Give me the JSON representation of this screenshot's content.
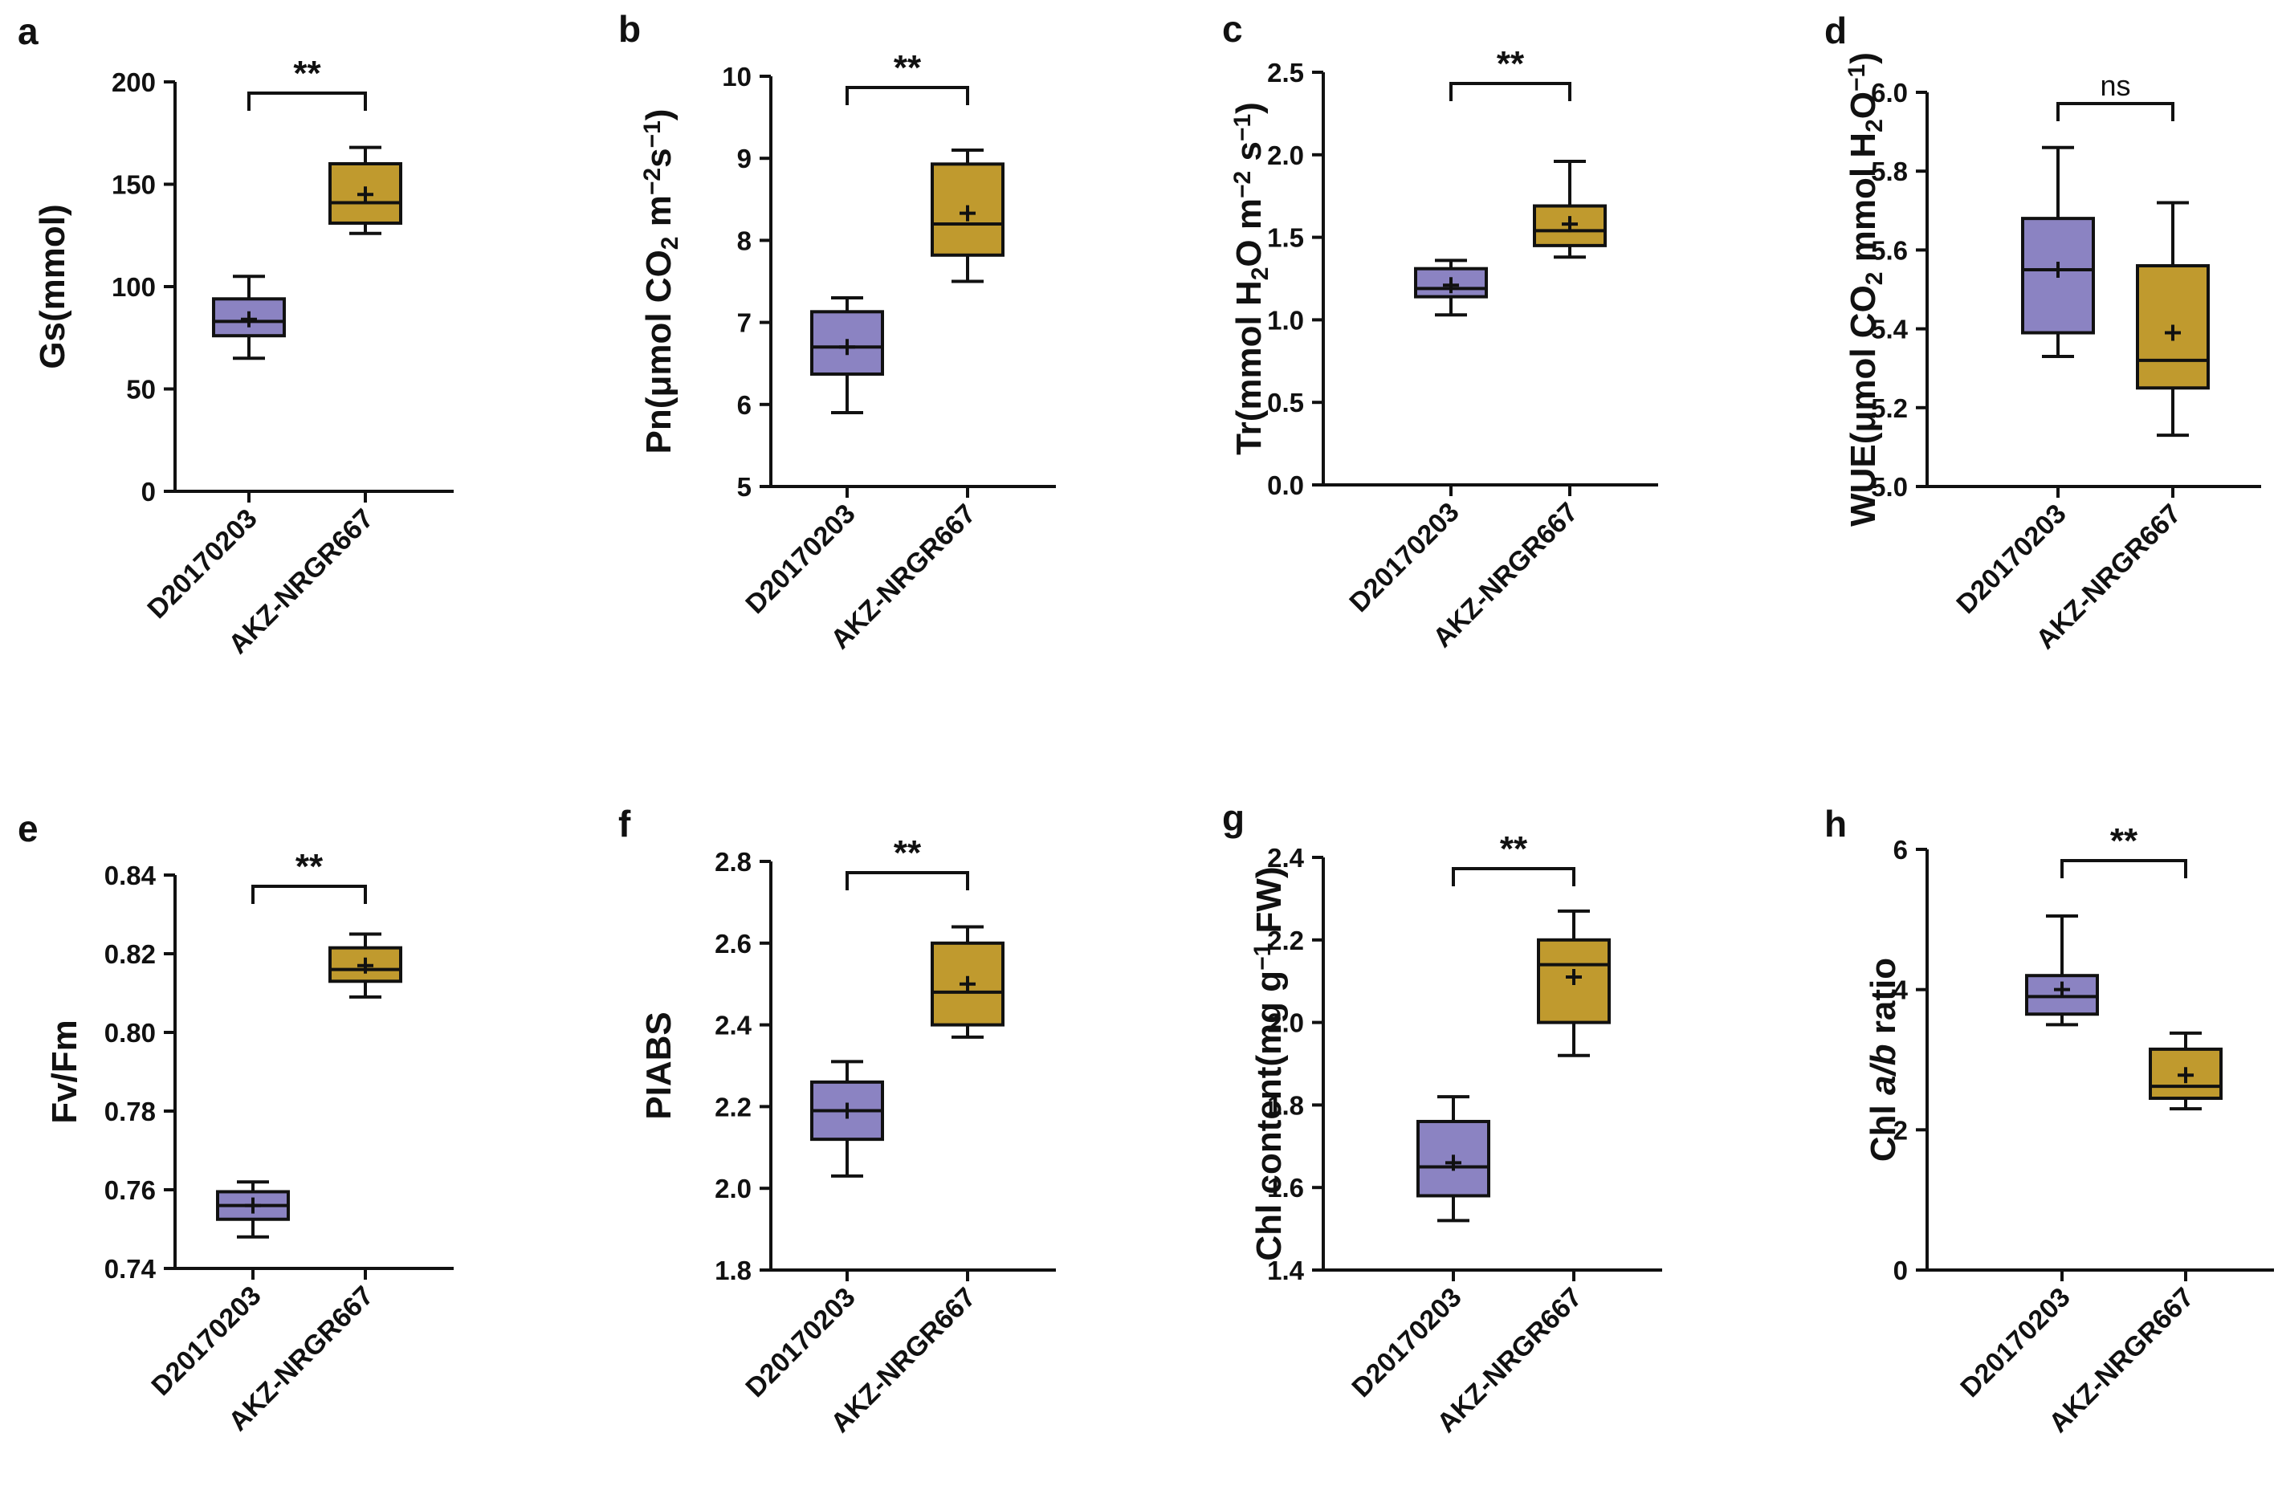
{
  "colors": {
    "group1": "#8b83c2",
    "group2": "#c09a2e",
    "line": "#111111"
  },
  "chart_data": [
    {
      "type": "box",
      "panel": "a",
      "ylabel": [
        {
          "t": "Gs(mmol)"
        }
      ],
      "categories": [
        "D20170203",
        "AKZ-NRGR667"
      ],
      "ylim": [
        0,
        200
      ],
      "ticks": [
        0,
        50,
        100,
        150,
        200
      ],
      "boxes": [
        {
          "min": 65,
          "q1": 76,
          "median": 83,
          "q3": 94,
          "max": 105,
          "mean": 84
        },
        {
          "min": 126,
          "q1": 131,
          "median": 141,
          "q3": 160,
          "max": 168,
          "mean": 145
        }
      ],
      "significance": "**"
    },
    {
      "type": "box",
      "panel": "b",
      "ylabel": [
        {
          "t": "Pn(μmol CO"
        },
        {
          "t": "2",
          "sub": true
        },
        {
          "t": " m"
        },
        {
          "t": "−2",
          "sup": true
        },
        {
          "t": "s"
        },
        {
          "t": "−1",
          "sup": true
        },
        {
          "t": ")"
        }
      ],
      "categories": [
        "D20170203",
        "AKZ-NRGR667"
      ],
      "ylim": [
        5,
        10
      ],
      "ticks": [
        5,
        6,
        7,
        8,
        9,
        10
      ],
      "boxes": [
        {
          "min": 5.9,
          "q1": 6.37,
          "median": 6.7,
          "q3": 7.13,
          "max": 7.3,
          "mean": 6.7
        },
        {
          "min": 7.5,
          "q1": 7.82,
          "median": 8.2,
          "q3": 8.93,
          "max": 9.1,
          "mean": 8.33
        }
      ],
      "significance": "**"
    },
    {
      "type": "box",
      "panel": "c",
      "ylabel": [
        {
          "t": "Tr(mmol H"
        },
        {
          "t": "2",
          "sub": true
        },
        {
          "t": "O m"
        },
        {
          "t": "−2",
          "sup": true
        },
        {
          "t": " s"
        },
        {
          "t": "−1",
          "sup": true
        },
        {
          "t": ")"
        }
      ],
      "categories": [
        "D20170203",
        "AKZ-NRGR667"
      ],
      "ylim": [
        0,
        2.5
      ],
      "ticks": [
        0.0,
        0.5,
        1.0,
        1.5,
        2.0,
        2.5
      ],
      "tick_decimals": 1,
      "boxes": [
        {
          "min": 1.03,
          "q1": 1.14,
          "median": 1.19,
          "q3": 1.31,
          "max": 1.36,
          "mean": 1.21
        },
        {
          "min": 1.38,
          "q1": 1.45,
          "median": 1.54,
          "q3": 1.69,
          "max": 1.96,
          "mean": 1.58
        }
      ],
      "significance": "**"
    },
    {
      "type": "box",
      "panel": "d",
      "ylabel": [
        {
          "t": "WUE(μmol CO"
        },
        {
          "t": "2",
          "sub": true
        },
        {
          "t": " mmol H"
        },
        {
          "t": "2",
          "sub": true
        },
        {
          "t": "O"
        },
        {
          "t": "−1",
          "sup": true
        },
        {
          "t": ")"
        }
      ],
      "categories": [
        "D20170203",
        "AKZ-NRGR667"
      ],
      "ylim": [
        5.0,
        6.0
      ],
      "ticks": [
        5.0,
        5.2,
        5.4,
        5.6,
        5.8,
        6.0
      ],
      "tick_decimals": 1,
      "boxes": [
        {
          "min": 5.33,
          "q1": 5.39,
          "median": 5.55,
          "q3": 5.68,
          "max": 5.86,
          "mean": 5.55
        },
        {
          "min": 5.13,
          "q1": 5.25,
          "median": 5.32,
          "q3": 5.56,
          "max": 5.72,
          "mean": 5.39
        }
      ],
      "significance": "ns"
    },
    {
      "type": "box",
      "panel": "e",
      "ylabel": [
        {
          "t": "Fv/Fm"
        }
      ],
      "categories": [
        "D20170203",
        "AKZ-NRGR667"
      ],
      "ylim": [
        0.74,
        0.84
      ],
      "ticks": [
        0.74,
        0.76,
        0.78,
        0.8,
        0.82,
        0.84
      ],
      "tick_decimals": 2,
      "boxes": [
        {
          "min": 0.748,
          "q1": 0.7525,
          "median": 0.756,
          "q3": 0.7595,
          "max": 0.762,
          "mean": 0.756
        },
        {
          "min": 0.809,
          "q1": 0.813,
          "median": 0.816,
          "q3": 0.8215,
          "max": 0.825,
          "mean": 0.817
        }
      ],
      "significance": "**"
    },
    {
      "type": "box",
      "panel": "f",
      "ylabel": [
        {
          "t": "PIABS"
        }
      ],
      "categories": [
        "D20170203",
        "AKZ-NRGR667"
      ],
      "ylim": [
        1.8,
        2.8
      ],
      "ticks": [
        1.8,
        2.0,
        2.2,
        2.4,
        2.6,
        2.8
      ],
      "tick_decimals": 1,
      "boxes": [
        {
          "min": 2.03,
          "q1": 2.12,
          "median": 2.19,
          "q3": 2.26,
          "max": 2.31,
          "mean": 2.19
        },
        {
          "min": 2.37,
          "q1": 2.4,
          "median": 2.48,
          "q3": 2.6,
          "max": 2.64,
          "mean": 2.5
        }
      ],
      "significance": "**"
    },
    {
      "type": "box",
      "panel": "g",
      "ylabel": [
        {
          "t": "Chl content(mg g"
        },
        {
          "t": "−1",
          "sup": true
        },
        {
          "t": " FW)"
        }
      ],
      "categories": [
        "D20170203",
        "AKZ-NRGR667"
      ],
      "ylim": [
        1.4,
        2.4
      ],
      "ticks": [
        1.4,
        1.6,
        1.8,
        2.0,
        2.2,
        2.4
      ],
      "tick_decimals": 1,
      "boxes": [
        {
          "min": 1.52,
          "q1": 1.58,
          "median": 1.65,
          "q3": 1.76,
          "max": 1.82,
          "mean": 1.66
        },
        {
          "min": 1.92,
          "q1": 2.0,
          "median": 2.14,
          "q3": 2.2,
          "max": 2.27,
          "mean": 2.11
        }
      ],
      "significance": "**"
    },
    {
      "type": "box",
      "panel": "h",
      "ylabel": [
        {
          "t": "Chl "
        },
        {
          "t": "a/b",
          "it": true
        },
        {
          "t": " ratio"
        }
      ],
      "categories": [
        "D20170203",
        "AKZ-NRGR667"
      ],
      "ylim": [
        0,
        6
      ],
      "ticks": [
        0,
        2,
        4,
        6
      ],
      "boxes": [
        {
          "min": 3.5,
          "q1": 3.65,
          "median": 3.9,
          "q3": 4.2,
          "max": 5.05,
          "mean": 4.0
        },
        {
          "min": 2.3,
          "q1": 2.45,
          "median": 2.62,
          "q3": 3.15,
          "max": 3.38,
          "mean": 2.78
        }
      ],
      "significance": "**"
    }
  ]
}
